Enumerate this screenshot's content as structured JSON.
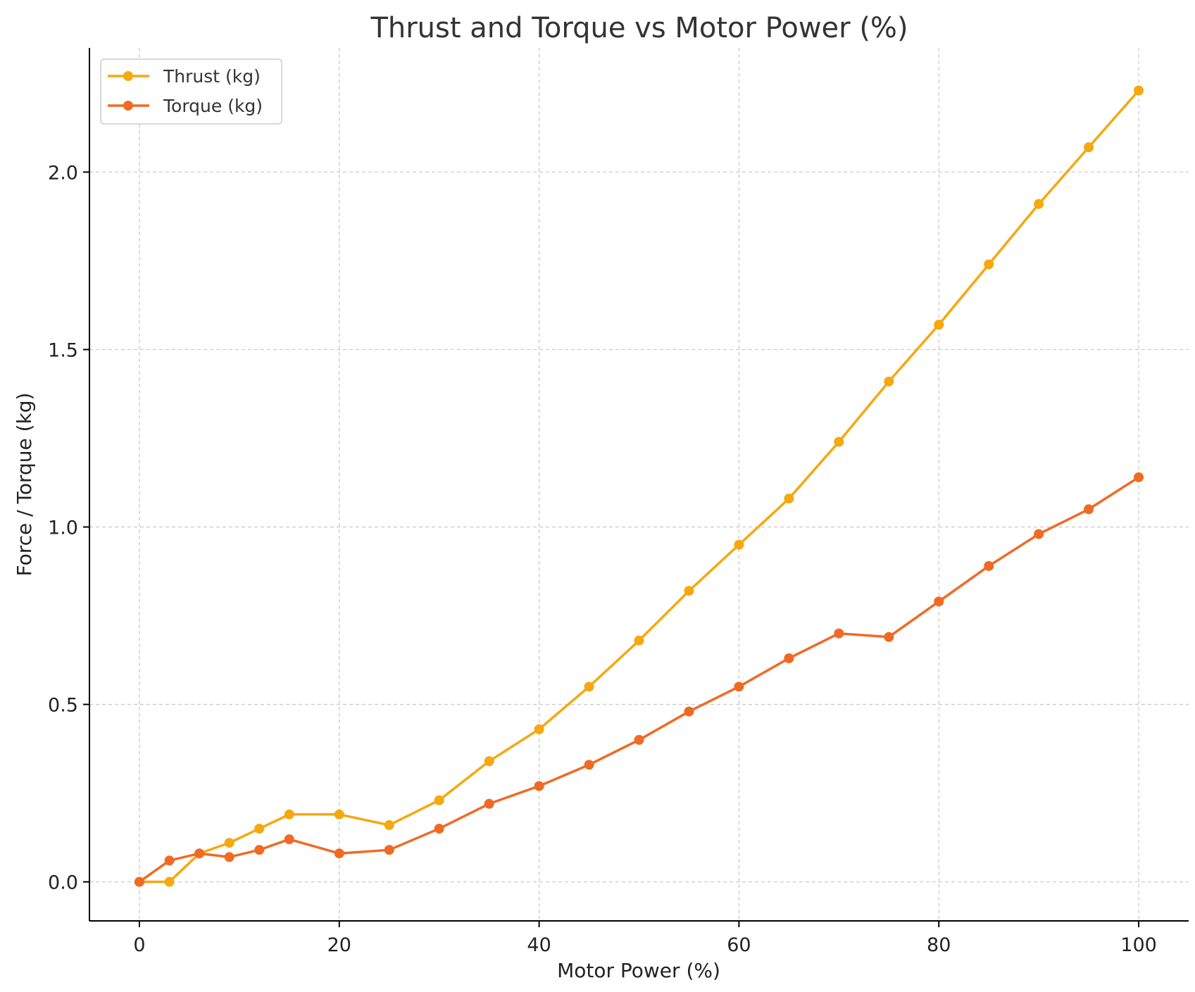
{
  "chart_data": {
    "type": "line",
    "title": "Thrust and Torque vs Motor Power (%)",
    "xlabel": "Motor Power (%)",
    "ylabel": "Force / Torque (kg)",
    "xlim": [
      -5,
      105
    ],
    "ylim": [
      -0.11,
      2.35
    ],
    "xticks": [
      0,
      20,
      40,
      60,
      80,
      100
    ],
    "xtick_labels": [
      "0",
      "20",
      "40",
      "60",
      "80",
      "100"
    ],
    "yticks": [
      0.0,
      0.5,
      1.0,
      1.5,
      2.0
    ],
    "ytick_labels": [
      "0.0",
      "0.5",
      "1.0",
      "1.5",
      "2.0"
    ],
    "grid": true,
    "legend_position": "top-left",
    "x": [
      0,
      3,
      6,
      9,
      12,
      15,
      20,
      25,
      30,
      35,
      40,
      45,
      50,
      55,
      60,
      65,
      70,
      75,
      80,
      85,
      90,
      95,
      100
    ],
    "series": [
      {
        "name": "Thrust (kg)",
        "color": "#f5a80f",
        "values": [
          0.0,
          0.0,
          0.08,
          0.11,
          0.15,
          0.19,
          0.19,
          0.16,
          0.23,
          0.34,
          0.43,
          0.55,
          0.68,
          0.82,
          0.95,
          1.08,
          1.24,
          1.41,
          1.57,
          1.74,
          1.91,
          2.07,
          2.23
        ]
      },
      {
        "name": "Torque (kg)",
        "color": "#f06a24",
        "values": [
          0.0,
          0.06,
          0.08,
          0.07,
          0.09,
          0.12,
          0.08,
          0.09,
          0.15,
          0.22,
          0.27,
          0.33,
          0.4,
          0.48,
          0.55,
          0.63,
          0.7,
          0.69,
          0.79,
          0.89,
          0.98,
          1.05,
          1.14
        ]
      }
    ]
  }
}
